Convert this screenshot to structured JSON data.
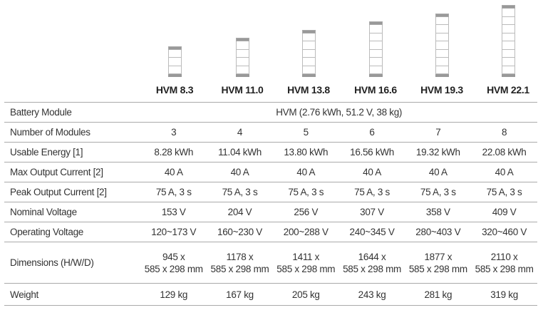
{
  "models": [
    {
      "name": "HVM 8.3",
      "modules": 3
    },
    {
      "name": "HVM 11.0",
      "modules": 4
    },
    {
      "name": "HVM 13.8",
      "modules": 5
    },
    {
      "name": "HVM 16.6",
      "modules": 6
    },
    {
      "name": "HVM 19.3",
      "modules": 7
    },
    {
      "name": "HVM 22.1",
      "modules": 8
    }
  ],
  "battery_module": {
    "label": "Battery Module",
    "value": "HVM (2.76 kWh, 51.2 V, 38 kg)"
  },
  "rows": [
    {
      "label": "Number of Modules",
      "values": [
        "3",
        "4",
        "5",
        "6",
        "7",
        "8"
      ]
    },
    {
      "label": "Usable Energy [1]",
      "values": [
        "8.28 kWh",
        "11.04 kWh",
        "13.80 kWh",
        "16.56 kWh",
        "19.32 kWh",
        "22.08 kWh"
      ]
    },
    {
      "label": "Max Output Current [2]",
      "values": [
        "40 A",
        "40 A",
        "40 A",
        "40 A",
        "40 A",
        "40 A"
      ]
    },
    {
      "label": "Peak Output Current [2]",
      "values": [
        "75 A, 3 s",
        "75 A, 3 s",
        "75 A, 3 s",
        "75 A, 3 s",
        "75 A, 3 s",
        "75 A, 3 s"
      ]
    },
    {
      "label": "Nominal Voltage",
      "values": [
        "153 V",
        "204 V",
        "256 V",
        "307 V",
        "358 V",
        "409 V"
      ]
    },
    {
      "label": "Operating Voltage",
      "values": [
        "120~173 V",
        "160~230 V",
        "200~288 V",
        "240~345 V",
        "280~403 V",
        "320~460 V"
      ]
    }
  ],
  "dimensions": {
    "label": "Dimensions (H/W/D)",
    "line1": [
      "945 x",
      "1178 x",
      "1411 x",
      "1644 x",
      "1877 x",
      "2110 x"
    ],
    "line2": [
      "585 x 298 mm",
      "585 x 298 mm",
      "585 x 298 mm",
      "585 x 298 mm",
      "585 x 298 mm",
      "585 x 298 mm"
    ]
  },
  "weight": {
    "label": "Weight",
    "values": [
      "129 kg",
      "167 kg",
      "205 kg",
      "243 kg",
      "281 kg",
      "319 kg"
    ]
  }
}
